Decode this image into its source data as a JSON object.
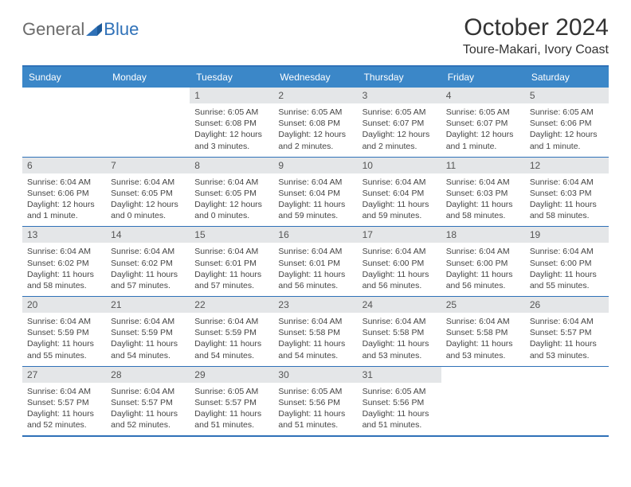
{
  "logo": {
    "general": "General",
    "blue": "Blue"
  },
  "title": "October 2024",
  "location": "Toure-Makari, Ivory Coast",
  "colors": {
    "header_bg": "#3b87c8",
    "border": "#2f71b8",
    "daynum_bg": "#e4e6e8",
    "text": "#333333",
    "logo_gray": "#6b6b6b",
    "logo_blue": "#2f71b8"
  },
  "weekdays": [
    "Sunday",
    "Monday",
    "Tuesday",
    "Wednesday",
    "Thursday",
    "Friday",
    "Saturday"
  ],
  "weeks": [
    [
      {
        "empty": true
      },
      {
        "empty": true
      },
      {
        "num": "1",
        "sunrise": "Sunrise: 6:05 AM",
        "sunset": "Sunset: 6:08 PM",
        "daylight": "Daylight: 12 hours and 3 minutes."
      },
      {
        "num": "2",
        "sunrise": "Sunrise: 6:05 AM",
        "sunset": "Sunset: 6:08 PM",
        "daylight": "Daylight: 12 hours and 2 minutes."
      },
      {
        "num": "3",
        "sunrise": "Sunrise: 6:05 AM",
        "sunset": "Sunset: 6:07 PM",
        "daylight": "Daylight: 12 hours and 2 minutes."
      },
      {
        "num": "4",
        "sunrise": "Sunrise: 6:05 AM",
        "sunset": "Sunset: 6:07 PM",
        "daylight": "Daylight: 12 hours and 1 minute."
      },
      {
        "num": "5",
        "sunrise": "Sunrise: 6:05 AM",
        "sunset": "Sunset: 6:06 PM",
        "daylight": "Daylight: 12 hours and 1 minute."
      }
    ],
    [
      {
        "num": "6",
        "sunrise": "Sunrise: 6:04 AM",
        "sunset": "Sunset: 6:06 PM",
        "daylight": "Daylight: 12 hours and 1 minute."
      },
      {
        "num": "7",
        "sunrise": "Sunrise: 6:04 AM",
        "sunset": "Sunset: 6:05 PM",
        "daylight": "Daylight: 12 hours and 0 minutes."
      },
      {
        "num": "8",
        "sunrise": "Sunrise: 6:04 AM",
        "sunset": "Sunset: 6:05 PM",
        "daylight": "Daylight: 12 hours and 0 minutes."
      },
      {
        "num": "9",
        "sunrise": "Sunrise: 6:04 AM",
        "sunset": "Sunset: 6:04 PM",
        "daylight": "Daylight: 11 hours and 59 minutes."
      },
      {
        "num": "10",
        "sunrise": "Sunrise: 6:04 AM",
        "sunset": "Sunset: 6:04 PM",
        "daylight": "Daylight: 11 hours and 59 minutes."
      },
      {
        "num": "11",
        "sunrise": "Sunrise: 6:04 AM",
        "sunset": "Sunset: 6:03 PM",
        "daylight": "Daylight: 11 hours and 58 minutes."
      },
      {
        "num": "12",
        "sunrise": "Sunrise: 6:04 AM",
        "sunset": "Sunset: 6:03 PM",
        "daylight": "Daylight: 11 hours and 58 minutes."
      }
    ],
    [
      {
        "num": "13",
        "sunrise": "Sunrise: 6:04 AM",
        "sunset": "Sunset: 6:02 PM",
        "daylight": "Daylight: 11 hours and 58 minutes."
      },
      {
        "num": "14",
        "sunrise": "Sunrise: 6:04 AM",
        "sunset": "Sunset: 6:02 PM",
        "daylight": "Daylight: 11 hours and 57 minutes."
      },
      {
        "num": "15",
        "sunrise": "Sunrise: 6:04 AM",
        "sunset": "Sunset: 6:01 PM",
        "daylight": "Daylight: 11 hours and 57 minutes."
      },
      {
        "num": "16",
        "sunrise": "Sunrise: 6:04 AM",
        "sunset": "Sunset: 6:01 PM",
        "daylight": "Daylight: 11 hours and 56 minutes."
      },
      {
        "num": "17",
        "sunrise": "Sunrise: 6:04 AM",
        "sunset": "Sunset: 6:00 PM",
        "daylight": "Daylight: 11 hours and 56 minutes."
      },
      {
        "num": "18",
        "sunrise": "Sunrise: 6:04 AM",
        "sunset": "Sunset: 6:00 PM",
        "daylight": "Daylight: 11 hours and 56 minutes."
      },
      {
        "num": "19",
        "sunrise": "Sunrise: 6:04 AM",
        "sunset": "Sunset: 6:00 PM",
        "daylight": "Daylight: 11 hours and 55 minutes."
      }
    ],
    [
      {
        "num": "20",
        "sunrise": "Sunrise: 6:04 AM",
        "sunset": "Sunset: 5:59 PM",
        "daylight": "Daylight: 11 hours and 55 minutes."
      },
      {
        "num": "21",
        "sunrise": "Sunrise: 6:04 AM",
        "sunset": "Sunset: 5:59 PM",
        "daylight": "Daylight: 11 hours and 54 minutes."
      },
      {
        "num": "22",
        "sunrise": "Sunrise: 6:04 AM",
        "sunset": "Sunset: 5:59 PM",
        "daylight": "Daylight: 11 hours and 54 minutes."
      },
      {
        "num": "23",
        "sunrise": "Sunrise: 6:04 AM",
        "sunset": "Sunset: 5:58 PM",
        "daylight": "Daylight: 11 hours and 54 minutes."
      },
      {
        "num": "24",
        "sunrise": "Sunrise: 6:04 AM",
        "sunset": "Sunset: 5:58 PM",
        "daylight": "Daylight: 11 hours and 53 minutes."
      },
      {
        "num": "25",
        "sunrise": "Sunrise: 6:04 AM",
        "sunset": "Sunset: 5:58 PM",
        "daylight": "Daylight: 11 hours and 53 minutes."
      },
      {
        "num": "26",
        "sunrise": "Sunrise: 6:04 AM",
        "sunset": "Sunset: 5:57 PM",
        "daylight": "Daylight: 11 hours and 53 minutes."
      }
    ],
    [
      {
        "num": "27",
        "sunrise": "Sunrise: 6:04 AM",
        "sunset": "Sunset: 5:57 PM",
        "daylight": "Daylight: 11 hours and 52 minutes."
      },
      {
        "num": "28",
        "sunrise": "Sunrise: 6:04 AM",
        "sunset": "Sunset: 5:57 PM",
        "daylight": "Daylight: 11 hours and 52 minutes."
      },
      {
        "num": "29",
        "sunrise": "Sunrise: 6:05 AM",
        "sunset": "Sunset: 5:57 PM",
        "daylight": "Daylight: 11 hours and 51 minutes."
      },
      {
        "num": "30",
        "sunrise": "Sunrise: 6:05 AM",
        "sunset": "Sunset: 5:56 PM",
        "daylight": "Daylight: 11 hours and 51 minutes."
      },
      {
        "num": "31",
        "sunrise": "Sunrise: 6:05 AM",
        "sunset": "Sunset: 5:56 PM",
        "daylight": "Daylight: 11 hours and 51 minutes."
      },
      {
        "empty": true
      },
      {
        "empty": true
      }
    ]
  ]
}
